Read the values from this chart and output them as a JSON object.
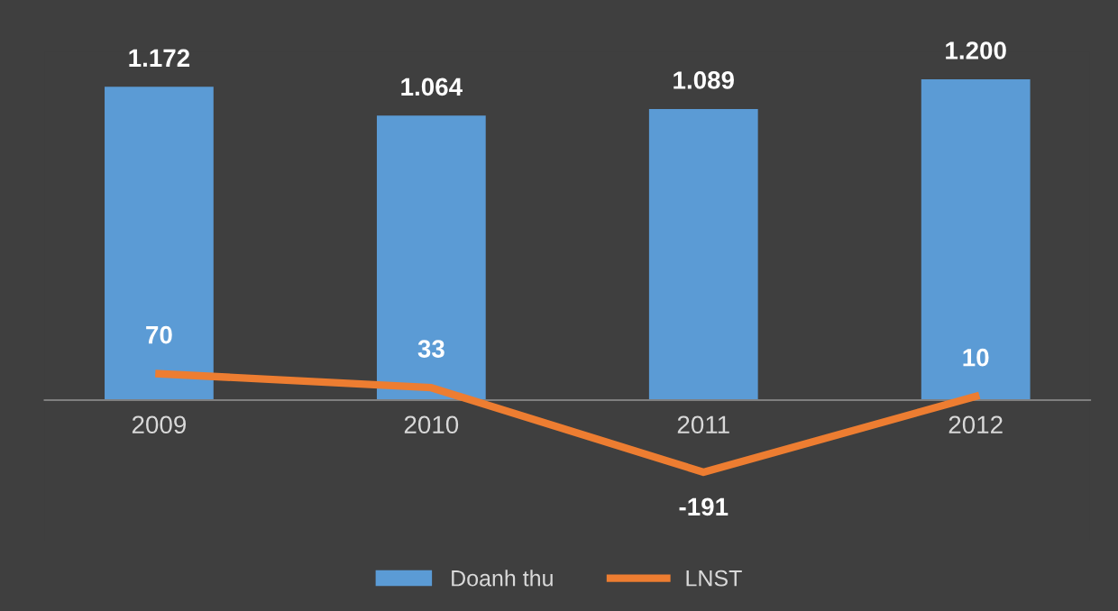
{
  "chart_data": {
    "type": "bar",
    "categories": [
      "2009",
      "2010",
      "2011",
      "2012"
    ],
    "series": [
      {
        "name": "Doanh thu",
        "color": "#5b9bd5",
        "values": [
          1172,
          1064,
          1089,
          1200
        ],
        "value_labels": [
          "1.172",
          "1.064",
          "1.089",
          "1.200"
        ]
      },
      {
        "name": "LNST",
        "type": "line",
        "axis": "y2",
        "color": "#ed7d31",
        "values": [
          70,
          33,
          -191,
          10
        ],
        "value_labels": [
          "70",
          "33",
          "-191",
          "10"
        ]
      }
    ],
    "legend": "bottom",
    "grid": false,
    "marker": "none",
    "line_style": "solid"
  }
}
